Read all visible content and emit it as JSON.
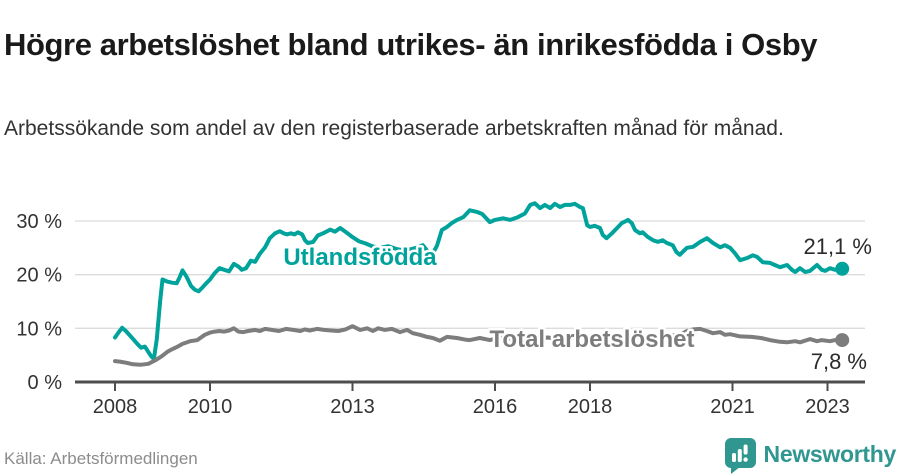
{
  "header": {
    "title": "Högre arbetslöshet bland utrikes- än inrikesfödda i Osby",
    "subtitle": "Arbetssökande som andel av den registerbaserade arbetskraften månad för månad."
  },
  "chart_data": {
    "type": "line",
    "title": "Högre arbetslöshet bland utrikes- än inrikesfödda i Osby",
    "xlabel": "",
    "ylabel": "",
    "x_range": [
      2008.0,
      2023.4
    ],
    "ylim": [
      0,
      35
    ],
    "grid": true,
    "y_ticks": [
      {
        "value": 0,
        "label": "0 %"
      },
      {
        "value": 10,
        "label": "10 %"
      },
      {
        "value": 20,
        "label": "20 %"
      },
      {
        "value": 30,
        "label": "30 %"
      }
    ],
    "x_ticks": [
      {
        "year": 2008,
        "label": "2008"
      },
      {
        "year": 2010,
        "label": "2010"
      },
      {
        "year": 2013,
        "label": "2013"
      },
      {
        "year": 2016,
        "label": "2016"
      },
      {
        "year": 2018,
        "label": "2018"
      },
      {
        "year": 2021,
        "label": "2021"
      },
      {
        "year": 2023,
        "label": "2023"
      }
    ],
    "series": [
      {
        "name": "Utlandsfödda",
        "color": "#00a39b",
        "end_label": "21,1 %",
        "end_value": 21.1,
        "points": [
          [
            2008.0,
            8.3
          ],
          [
            2008.08,
            9.3
          ],
          [
            2008.15,
            10.1
          ],
          [
            2008.23,
            9.5
          ],
          [
            2008.32,
            8.6
          ],
          [
            2008.4,
            7.8
          ],
          [
            2008.48,
            7.0
          ],
          [
            2008.55,
            6.4
          ],
          [
            2008.63,
            6.6
          ],
          [
            2008.7,
            5.6
          ],
          [
            2008.76,
            4.8
          ],
          [
            2008.82,
            4.3
          ],
          [
            2008.88,
            8.0
          ],
          [
            2008.95,
            15.0
          ],
          [
            2009.0,
            19.1
          ],
          [
            2009.1,
            18.7
          ],
          [
            2009.2,
            18.5
          ],
          [
            2009.3,
            18.4
          ],
          [
            2009.36,
            19.5
          ],
          [
            2009.42,
            20.8
          ],
          [
            2009.5,
            19.7
          ],
          [
            2009.6,
            17.9
          ],
          [
            2009.68,
            17.2
          ],
          [
            2009.76,
            16.9
          ],
          [
            2009.84,
            17.6
          ],
          [
            2009.92,
            18.4
          ],
          [
            2010.0,
            19.1
          ],
          [
            2010.1,
            20.3
          ],
          [
            2010.2,
            21.2
          ],
          [
            2010.3,
            20.9
          ],
          [
            2010.4,
            20.6
          ],
          [
            2010.5,
            22.0
          ],
          [
            2010.6,
            21.5
          ],
          [
            2010.67,
            20.9
          ],
          [
            2010.76,
            21.2
          ],
          [
            2010.86,
            22.6
          ],
          [
            2010.95,
            22.4
          ],
          [
            2011.05,
            23.9
          ],
          [
            2011.16,
            25.1
          ],
          [
            2011.26,
            26.8
          ],
          [
            2011.37,
            27.7
          ],
          [
            2011.47,
            28.1
          ],
          [
            2011.55,
            27.7
          ],
          [
            2011.62,
            27.5
          ],
          [
            2011.7,
            27.7
          ],
          [
            2011.78,
            27.5
          ],
          [
            2011.85,
            27.9
          ],
          [
            2011.94,
            27.5
          ],
          [
            2012.0,
            26.4
          ],
          [
            2012.06,
            25.9
          ],
          [
            2012.17,
            26.1
          ],
          [
            2012.27,
            27.3
          ],
          [
            2012.38,
            27.7
          ],
          [
            2012.53,
            28.4
          ],
          [
            2012.63,
            28.0
          ],
          [
            2012.74,
            28.7
          ],
          [
            2012.88,
            27.8
          ],
          [
            2013.0,
            27.0
          ],
          [
            2013.14,
            26.2
          ],
          [
            2013.28,
            25.8
          ],
          [
            2013.41,
            25.3
          ],
          [
            2013.58,
            25.0
          ],
          [
            2013.75,
            25.3
          ],
          [
            2013.92,
            24.8
          ],
          [
            2014.08,
            24.5
          ],
          [
            2014.25,
            24.8
          ],
          [
            2014.38,
            25.1
          ],
          [
            2014.48,
            25.5
          ],
          [
            2014.59,
            24.3
          ],
          [
            2014.67,
            23.6
          ],
          [
            2014.78,
            25.4
          ],
          [
            2014.88,
            28.3
          ],
          [
            2014.99,
            28.9
          ],
          [
            2015.09,
            29.6
          ],
          [
            2015.2,
            30.2
          ],
          [
            2015.33,
            30.7
          ],
          [
            2015.47,
            32.0
          ],
          [
            2015.62,
            31.7
          ],
          [
            2015.73,
            31.3
          ],
          [
            2015.89,
            29.8
          ],
          [
            2016.0,
            30.2
          ],
          [
            2016.17,
            30.5
          ],
          [
            2016.32,
            30.2
          ],
          [
            2016.48,
            30.7
          ],
          [
            2016.63,
            31.4
          ],
          [
            2016.74,
            33.0
          ],
          [
            2016.84,
            33.3
          ],
          [
            2016.95,
            32.4
          ],
          [
            2017.05,
            33.0
          ],
          [
            2017.16,
            32.4
          ],
          [
            2017.26,
            33.2
          ],
          [
            2017.37,
            32.6
          ],
          [
            2017.47,
            33.0
          ],
          [
            2017.58,
            33.0
          ],
          [
            2017.68,
            33.2
          ],
          [
            2017.79,
            32.6
          ],
          [
            2017.85,
            32.4
          ],
          [
            2017.94,
            29.2
          ],
          [
            2018.0,
            28.9
          ],
          [
            2018.1,
            29.1
          ],
          [
            2018.21,
            28.7
          ],
          [
            2018.27,
            27.4
          ],
          [
            2018.35,
            26.8
          ],
          [
            2018.46,
            27.7
          ],
          [
            2018.57,
            28.7
          ],
          [
            2018.67,
            29.6
          ],
          [
            2018.76,
            30.0
          ],
          [
            2018.8,
            30.2
          ],
          [
            2018.88,
            29.6
          ],
          [
            2018.95,
            28.3
          ],
          [
            2019.05,
            27.7
          ],
          [
            2019.11,
            27.9
          ],
          [
            2019.22,
            27.0
          ],
          [
            2019.33,
            26.4
          ],
          [
            2019.43,
            26.1
          ],
          [
            2019.53,
            26.4
          ],
          [
            2019.62,
            25.9
          ],
          [
            2019.74,
            25.5
          ],
          [
            2019.82,
            24.2
          ],
          [
            2019.89,
            23.7
          ],
          [
            2020.04,
            25.0
          ],
          [
            2020.17,
            25.2
          ],
          [
            2020.32,
            26.1
          ],
          [
            2020.46,
            26.8
          ],
          [
            2020.59,
            25.9
          ],
          [
            2020.74,
            25.1
          ],
          [
            2020.84,
            25.5
          ],
          [
            2020.95,
            25.0
          ],
          [
            2021.05,
            24.0
          ],
          [
            2021.16,
            22.7
          ],
          [
            2021.31,
            23.1
          ],
          [
            2021.43,
            23.6
          ],
          [
            2021.52,
            23.3
          ],
          [
            2021.64,
            22.3
          ],
          [
            2021.79,
            22.2
          ],
          [
            2021.89,
            21.8
          ],
          [
            2022.0,
            21.4
          ],
          [
            2022.15,
            21.8
          ],
          [
            2022.25,
            20.9
          ],
          [
            2022.32,
            20.5
          ],
          [
            2022.42,
            21.2
          ],
          [
            2022.53,
            20.5
          ],
          [
            2022.63,
            20.7
          ],
          [
            2022.78,
            21.8
          ],
          [
            2022.88,
            20.9
          ],
          [
            2022.95,
            20.7
          ],
          [
            2023.05,
            21.2
          ],
          [
            2023.16,
            20.9
          ],
          [
            2023.31,
            21.1
          ]
        ]
      },
      {
        "name": "Total arbetslöshet",
        "color": "#7d7d7d",
        "end_label": "7,8 %",
        "end_value": 7.8,
        "points": [
          [
            2008.0,
            3.9
          ],
          [
            2008.1,
            3.8
          ],
          [
            2008.23,
            3.6
          ],
          [
            2008.38,
            3.3
          ],
          [
            2008.53,
            3.2
          ],
          [
            2008.7,
            3.4
          ],
          [
            2008.84,
            4.0
          ],
          [
            2008.95,
            4.6
          ],
          [
            2009.0,
            4.9
          ],
          [
            2009.1,
            5.6
          ],
          [
            2009.2,
            6.1
          ],
          [
            2009.3,
            6.5
          ],
          [
            2009.42,
            7.1
          ],
          [
            2009.58,
            7.6
          ],
          [
            2009.73,
            7.8
          ],
          [
            2009.89,
            8.8
          ],
          [
            2010.0,
            9.2
          ],
          [
            2010.1,
            9.4
          ],
          [
            2010.2,
            9.5
          ],
          [
            2010.3,
            9.4
          ],
          [
            2010.4,
            9.6
          ],
          [
            2010.5,
            10.0
          ],
          [
            2010.6,
            9.4
          ],
          [
            2010.7,
            9.3
          ],
          [
            2010.8,
            9.5
          ],
          [
            2010.95,
            9.7
          ],
          [
            2011.05,
            9.5
          ],
          [
            2011.16,
            9.9
          ],
          [
            2011.3,
            9.7
          ],
          [
            2011.45,
            9.5
          ],
          [
            2011.6,
            9.9
          ],
          [
            2011.75,
            9.7
          ],
          [
            2011.9,
            9.5
          ],
          [
            2012.0,
            9.8
          ],
          [
            2012.1,
            9.6
          ],
          [
            2012.25,
            9.9
          ],
          [
            2012.4,
            9.7
          ],
          [
            2012.55,
            9.6
          ],
          [
            2012.7,
            9.5
          ],
          [
            2012.85,
            9.8
          ],
          [
            2013.0,
            10.4
          ],
          [
            2013.16,
            9.7
          ],
          [
            2013.31,
            10.0
          ],
          [
            2013.43,
            9.5
          ],
          [
            2013.54,
            10.0
          ],
          [
            2013.68,
            9.7
          ],
          [
            2013.83,
            9.9
          ],
          [
            2014.0,
            9.3
          ],
          [
            2014.15,
            9.7
          ],
          [
            2014.27,
            9.1
          ],
          [
            2014.42,
            8.8
          ],
          [
            2014.57,
            8.4
          ],
          [
            2014.69,
            8.2
          ],
          [
            2014.84,
            7.7
          ],
          [
            2014.99,
            8.4
          ],
          [
            2015.2,
            8.2
          ],
          [
            2015.37,
            7.9
          ],
          [
            2015.47,
            7.8
          ],
          [
            2015.68,
            8.2
          ],
          [
            2015.89,
            7.8
          ],
          [
            2016.1,
            8.3
          ],
          [
            2016.3,
            8.1
          ],
          [
            2016.5,
            8.4
          ],
          [
            2016.7,
            8.2
          ],
          [
            2016.9,
            8.0
          ],
          [
            2017.1,
            8.3
          ],
          [
            2017.3,
            8.1
          ],
          [
            2017.5,
            8.4
          ],
          [
            2017.7,
            8.2
          ],
          [
            2017.9,
            8.4
          ],
          [
            2018.1,
            8.2
          ],
          [
            2018.3,
            8.5
          ],
          [
            2018.5,
            8.3
          ],
          [
            2018.7,
            8.6
          ],
          [
            2018.9,
            8.4
          ],
          [
            2019.1,
            8.3
          ],
          [
            2019.3,
            8.5
          ],
          [
            2019.5,
            8.3
          ],
          [
            2019.7,
            8.6
          ],
          [
            2019.89,
            8.8
          ],
          [
            2020.04,
            9.5
          ],
          [
            2020.17,
            9.8
          ],
          [
            2020.32,
            9.9
          ],
          [
            2020.46,
            9.5
          ],
          [
            2020.59,
            9.1
          ],
          [
            2020.74,
            9.3
          ],
          [
            2020.84,
            8.8
          ],
          [
            2020.95,
            8.9
          ],
          [
            2021.16,
            8.5
          ],
          [
            2021.4,
            8.4
          ],
          [
            2021.6,
            8.2
          ],
          [
            2021.79,
            7.8
          ],
          [
            2022.0,
            7.5
          ],
          [
            2022.15,
            7.4
          ],
          [
            2022.32,
            7.6
          ],
          [
            2022.42,
            7.4
          ],
          [
            2022.63,
            8.0
          ],
          [
            2022.78,
            7.6
          ],
          [
            2022.88,
            7.8
          ],
          [
            2023.05,
            7.6
          ],
          [
            2023.16,
            7.8
          ],
          [
            2023.31,
            7.8
          ]
        ]
      }
    ],
    "colors": {
      "grid": "#dcdcdc",
      "axis": "#4d4d4d",
      "tick_label": "#333333",
      "accent_teal": "#00a39b",
      "accent_gray": "#7d7d7d"
    }
  },
  "footer": {
    "source": "Källa: Arbetsförmedlingen",
    "brand": "Newsworthy"
  }
}
